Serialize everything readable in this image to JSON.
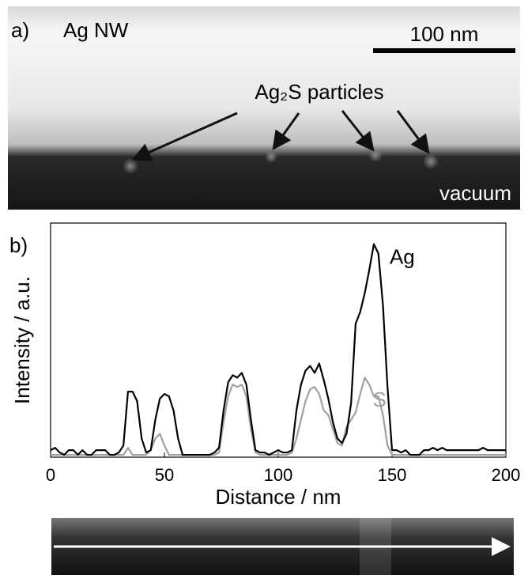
{
  "panel_a": {
    "label": "a)",
    "sample": "Ag NW",
    "scale_bar": "100 nm",
    "particles": "Ag₂S particles",
    "vacuum": "vacuum"
  },
  "chart_data": {
    "type": "line",
    "panel_label": "b)",
    "x_label": "Distance / nm",
    "y_label": "Intensity / a.u.",
    "x": [
      0,
      2,
      4,
      6,
      8,
      10,
      12,
      14,
      16,
      18,
      20,
      22,
      24,
      26,
      28,
      30,
      32,
      34,
      36,
      38,
      40,
      42,
      44,
      46,
      48,
      50,
      52,
      54,
      56,
      58,
      60,
      62,
      64,
      66,
      68,
      70,
      72,
      74,
      76,
      78,
      80,
      82,
      84,
      86,
      88,
      90,
      92,
      94,
      96,
      98,
      100,
      102,
      104,
      106,
      108,
      110,
      112,
      114,
      116,
      118,
      120,
      122,
      124,
      126,
      128,
      130,
      132,
      134,
      136,
      138,
      140,
      142,
      144,
      146,
      148,
      150,
      152,
      154,
      156,
      158,
      160,
      162,
      164,
      166,
      168,
      170,
      172,
      174,
      176,
      178,
      180,
      182,
      184,
      186,
      188,
      190,
      192,
      194,
      196,
      198,
      200
    ],
    "series": [
      {
        "name": "S",
        "color": "#a0a0a0",
        "values": [
          0.1,
          0.1,
          0.1,
          0.1,
          0.1,
          0.1,
          0.1,
          0.1,
          0.1,
          0.1,
          0.1,
          0.1,
          0.1,
          0.1,
          0.1,
          0.1,
          0.1,
          0.4,
          0.1,
          0.1,
          0.1,
          0.1,
          0.3,
          0.8,
          1.0,
          0.5,
          0.1,
          0.1,
          0.1,
          0.1,
          0.1,
          0.1,
          0.1,
          0.1,
          0.1,
          0.1,
          0.1,
          0.2,
          1.5,
          2.6,
          3.1,
          3.0,
          3.1,
          2.6,
          1.2,
          0.2,
          0.1,
          0.1,
          0.1,
          0.1,
          0.1,
          0.1,
          0.1,
          0.2,
          0.8,
          1.6,
          2.4,
          2.9,
          3.0,
          2.7,
          2.0,
          1.8,
          1.2,
          0.6,
          0.5,
          1.3,
          1.6,
          1.9,
          2.7,
          3.4,
          3.1,
          2.6,
          2.6,
          1.8,
          0.5,
          0.1,
          0.1,
          0.1,
          0.1,
          0.1,
          0.1,
          0.1,
          0.1,
          0.1,
          0.1,
          0.1,
          0.1,
          0.1,
          0.1,
          0.1,
          0.1,
          0.1,
          0.1,
          0.1,
          0.1,
          0.1,
          0.1,
          0.1,
          0.1,
          0.1,
          0.1
        ]
      },
      {
        "name": "Ag",
        "color": "#000000",
        "values": [
          0.3,
          0.4,
          0.2,
          0.1,
          0.3,
          0.3,
          0.1,
          0.3,
          0.1,
          0.1,
          0.3,
          0.3,
          0.3,
          0.1,
          0.1,
          0.2,
          0.5,
          2.8,
          2.8,
          2.4,
          0.8,
          0.2,
          0.3,
          1.6,
          2.5,
          2.7,
          2.6,
          2.0,
          0.8,
          0.1,
          0.1,
          0.1,
          0.1,
          0.1,
          0.1,
          0.1,
          0.2,
          0.4,
          2.0,
          3.2,
          3.5,
          3.4,
          3.6,
          3.1,
          1.6,
          0.3,
          0.2,
          0.2,
          0.1,
          0.2,
          0.3,
          0.2,
          0.2,
          0.3,
          2.0,
          3.1,
          3.7,
          3.9,
          3.6,
          4.0,
          3.3,
          2.5,
          1.5,
          0.8,
          0.6,
          1.0,
          2.3,
          5.7,
          6.2,
          7.0,
          8.0,
          9.1,
          8.7,
          6.5,
          3.0,
          0.3,
          0.3,
          0.2,
          0.3,
          0.1,
          0.1,
          0.1,
          0.3,
          0.3,
          0.4,
          0.3,
          0.4,
          0.3,
          0.3,
          0.3,
          0.3,
          0.3,
          0.3,
          0.3,
          0.3,
          0.4,
          0.3,
          0.3,
          0.3,
          0.3,
          0.3
        ]
      }
    ],
    "xlim": [
      0,
      200
    ],
    "xticks": [
      0,
      50,
      100,
      150,
      200
    ],
    "ylim": [
      0,
      10
    ]
  }
}
